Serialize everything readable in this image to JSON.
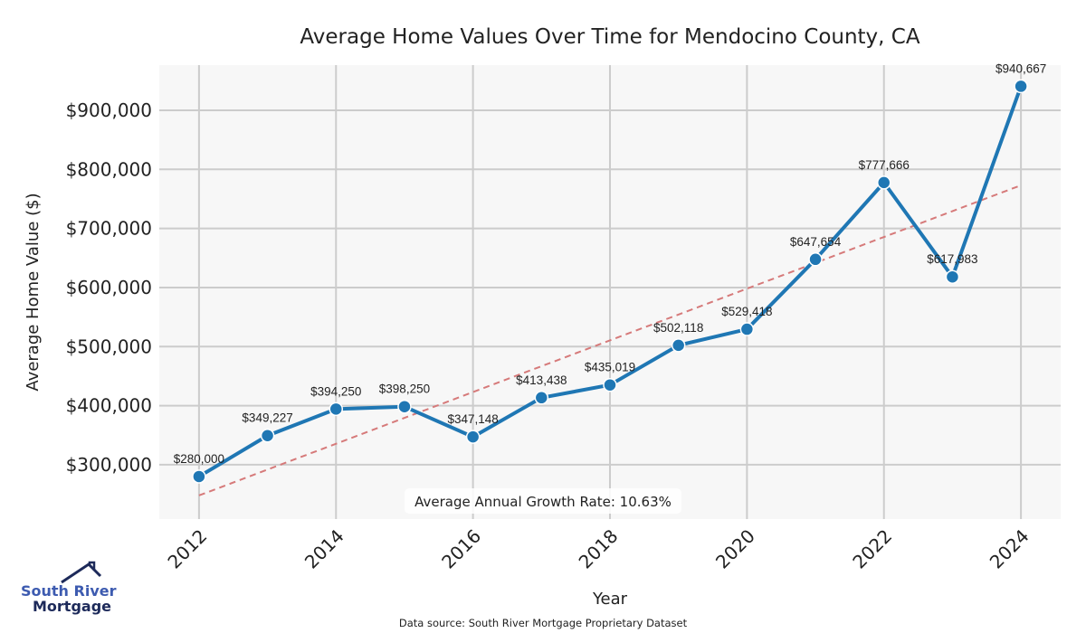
{
  "chart_data": {
    "type": "line",
    "title": "Average Home Values Over Time for Mendocino County, CA",
    "xlabel": "Year",
    "ylabel": "Average Home Value ($)",
    "x": [
      2012,
      2013,
      2014,
      2015,
      2016,
      2017,
      2018,
      2019,
      2020,
      2021,
      2022,
      2023,
      2024
    ],
    "values": [
      280000,
      349227,
      394250,
      398250,
      347148,
      413438,
      435019,
      502118,
      529418,
      647654,
      777666,
      617983,
      940667
    ],
    "data_labels": [
      "$280,000",
      "$349,227",
      "$394,250",
      "$398,250",
      "$347,148",
      "$413,438",
      "$435,019",
      "$502,118",
      "$529,418",
      "$647,654",
      "$777,666",
      "$617,983",
      "$940,667"
    ],
    "xticks": [
      2012,
      2014,
      2016,
      2018,
      2020,
      2022,
      2024
    ],
    "xtick_labels": [
      "2012",
      "2014",
      "2016",
      "2018",
      "2020",
      "2022",
      "2024"
    ],
    "yticks": [
      300000,
      400000,
      500000,
      600000,
      700000,
      800000,
      900000
    ],
    "ytick_labels": [
      "$300,000",
      "$400,000",
      "$500,000",
      "$600,000",
      "$700,000",
      "$800,000",
      "$900,000"
    ],
    "xlim": [
      2011.42,
      2024.58
    ],
    "ylim": [
      208000,
      976500
    ],
    "grid": true,
    "trend": {
      "name": "Trend line",
      "start": [
        2012,
        248000
      ],
      "end": [
        2024,
        773000
      ]
    },
    "annotation": "Average Annual Growth Rate: 10.63%",
    "source": "Data source: South River Mortgage Proprietary Dataset",
    "colors": {
      "line": "#1f77b4",
      "trend": "#d67a7a",
      "background": "#f7f7f7",
      "grid": "#cccccc"
    }
  },
  "logo": {
    "line1": "South River",
    "line2": "Mortgage"
  }
}
